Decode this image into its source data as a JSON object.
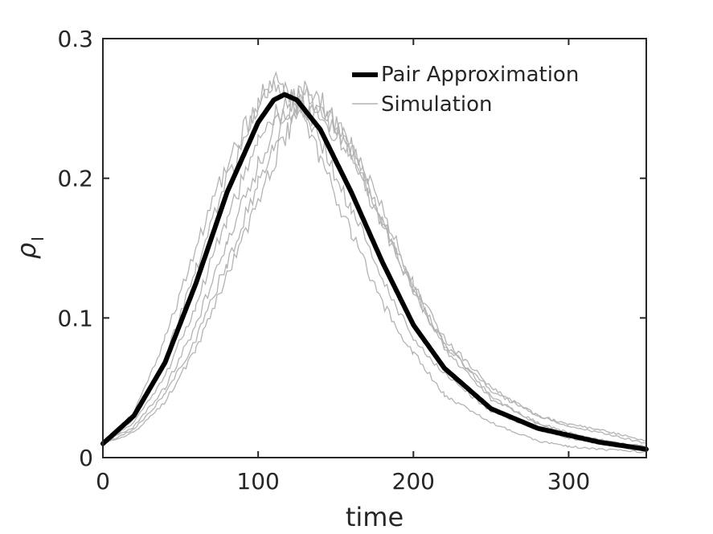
{
  "chart_data": {
    "type": "line",
    "title": "",
    "xlabel": "time",
    "ylabel": "ρ",
    "ylabel_subscript": "I",
    "xlim": [
      0,
      350
    ],
    "ylim": [
      0,
      0.3
    ],
    "xticks": [
      0,
      100,
      200,
      300
    ],
    "yticks": [
      0,
      0.1,
      0.2,
      0.3
    ],
    "xtick_labels": [
      "0",
      "100",
      "200",
      "300"
    ],
    "ytick_labels": [
      "0",
      "0.1",
      "0.2",
      "0.3"
    ],
    "grid": false,
    "legend_position": "top-right",
    "colors": {
      "pair": "#000000",
      "simulation": "#b3b3b3",
      "axes": "#262626"
    },
    "series": [
      {
        "name": "Pair Approximation",
        "style": "thick",
        "x": [
          0,
          20,
          40,
          60,
          80,
          100,
          110,
          117,
          125,
          140,
          160,
          180,
          200,
          220,
          250,
          280,
          300,
          320,
          350
        ],
        "y": [
          0.01,
          0.03,
          0.068,
          0.125,
          0.19,
          0.24,
          0.256,
          0.26,
          0.256,
          0.235,
          0.19,
          0.14,
          0.095,
          0.064,
          0.035,
          0.021,
          0.016,
          0.011,
          0.006
        ]
      },
      {
        "name": "Simulation",
        "style": "thin",
        "runs": [
          {
            "x": [
              0,
              20,
              40,
              60,
              80,
              100,
              110,
              120,
              130,
              140,
              160,
              180,
              200,
              220,
              250,
              280,
              300,
              320,
              350
            ],
            "y": [
              0.01,
              0.032,
              0.085,
              0.15,
              0.21,
              0.255,
              0.27,
              0.262,
              0.25,
              0.228,
              0.178,
              0.128,
              0.085,
              0.06,
              0.033,
              0.02,
              0.014,
              0.01,
              0.005
            ]
          },
          {
            "x": [
              0,
              20,
              40,
              60,
              80,
              100,
              110,
              120,
              130,
              140,
              160,
              180,
              200,
              220,
              250,
              280,
              300,
              320,
              350
            ],
            "y": [
              0.01,
              0.028,
              0.07,
              0.135,
              0.2,
              0.25,
              0.264,
              0.262,
              0.24,
              0.215,
              0.16,
              0.11,
              0.075,
              0.045,
              0.025,
              0.012,
              0.008,
              0.006,
              0.004
            ]
          },
          {
            "x": [
              0,
              20,
              40,
              60,
              80,
              100,
              110,
              120,
              130,
              140,
              160,
              180,
              200,
              220,
              250,
              280,
              300,
              320,
              350
            ],
            "y": [
              0.01,
              0.022,
              0.05,
              0.095,
              0.155,
              0.21,
              0.235,
              0.252,
              0.262,
              0.255,
              0.225,
              0.178,
              0.125,
              0.085,
              0.05,
              0.03,
              0.022,
              0.018,
              0.01
            ]
          },
          {
            "x": [
              0,
              20,
              40,
              60,
              80,
              100,
              110,
              120,
              130,
              140,
              160,
              180,
              200,
              220,
              250,
              280,
              300,
              320,
              350
            ],
            "y": [
              0.01,
              0.02,
              0.045,
              0.085,
              0.14,
              0.195,
              0.222,
              0.245,
              0.252,
              0.25,
              0.218,
              0.17,
              0.12,
              0.078,
              0.042,
              0.025,
              0.018,
              0.012,
              0.008
            ]
          },
          {
            "x": [
              0,
              20,
              40,
              60,
              80,
              100,
              110,
              120,
              130,
              140,
              160,
              180,
              200,
              220,
              250,
              280,
              300,
              320,
              350
            ],
            "y": [
              0.01,
              0.025,
              0.058,
              0.11,
              0.172,
              0.225,
              0.245,
              0.255,
              0.262,
              0.252,
              0.222,
              0.172,
              0.122,
              0.082,
              0.044,
              0.024,
              0.016,
              0.013,
              0.007
            ]
          },
          {
            "x": [
              0,
              20,
              40,
              60,
              80,
              100,
              110,
              120,
              130,
              140,
              160,
              180,
              200,
              220,
              250,
              280,
              300,
              320,
              350
            ],
            "y": [
              0.01,
              0.018,
              0.04,
              0.078,
              0.13,
              0.185,
              0.212,
              0.236,
              0.245,
              0.245,
              0.215,
              0.168,
              0.118,
              0.08,
              0.048,
              0.03,
              0.024,
              0.02,
              0.012
            ]
          }
        ]
      }
    ]
  }
}
